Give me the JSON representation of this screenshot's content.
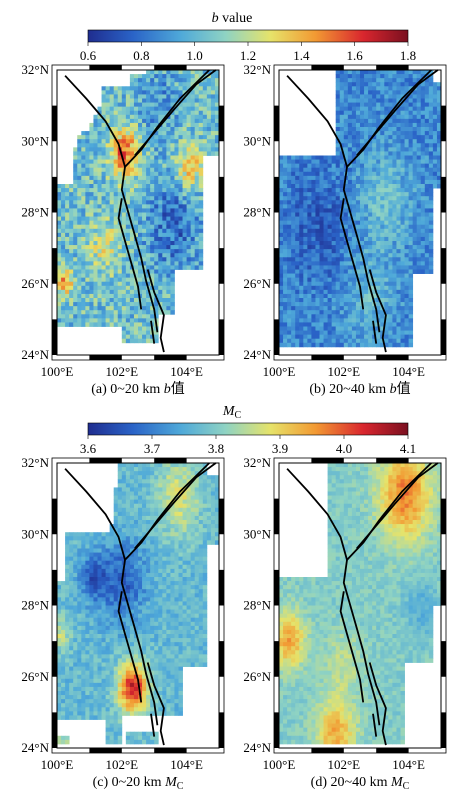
{
  "colorbars": [
    {
      "title": "b value",
      "title_italic_part": "b",
      "title_rest": " value",
      "ticks": [
        "0.6",
        "0.8",
        "1.0",
        "1.2",
        "1.4",
        "1.6",
        "1.8"
      ],
      "range": [
        0.6,
        1.8
      ]
    },
    {
      "title": "MC",
      "title_main": "M",
      "title_sub": "C",
      "ticks": [
        "3.6",
        "3.7",
        "3.8",
        "3.9",
        "4.0",
        "4.1"
      ],
      "range": [
        3.6,
        4.1
      ]
    }
  ],
  "colormap": [
    "#1f2d8f",
    "#2a63c7",
    "#4fa9d9",
    "#8fd3c3",
    "#e6e36a",
    "#f29a33",
    "#d9262e",
    "#7a1020"
  ],
  "lat_labels": [
    "32°N",
    "30°N",
    "28°N",
    "26°N",
    "24°N"
  ],
  "lon_labels": [
    "100°E",
    "102°E",
    "104°E"
  ],
  "maps": [
    {
      "id": "a",
      "caption_prefix": "(a) 0~20 km ",
      "caption_italic": "b",
      "caption_suffix": "值"
    },
    {
      "id": "b",
      "caption_prefix": "(b) 20~40 km ",
      "caption_italic": "b",
      "caption_suffix": "值"
    },
    {
      "id": "c",
      "caption_prefix": "(c) 0~20 km ",
      "caption_italic": "M",
      "caption_sub": "C"
    },
    {
      "id": "d",
      "caption_prefix": "(d) 20~40 km ",
      "caption_italic": "M",
      "caption_sub": "C"
    }
  ]
}
